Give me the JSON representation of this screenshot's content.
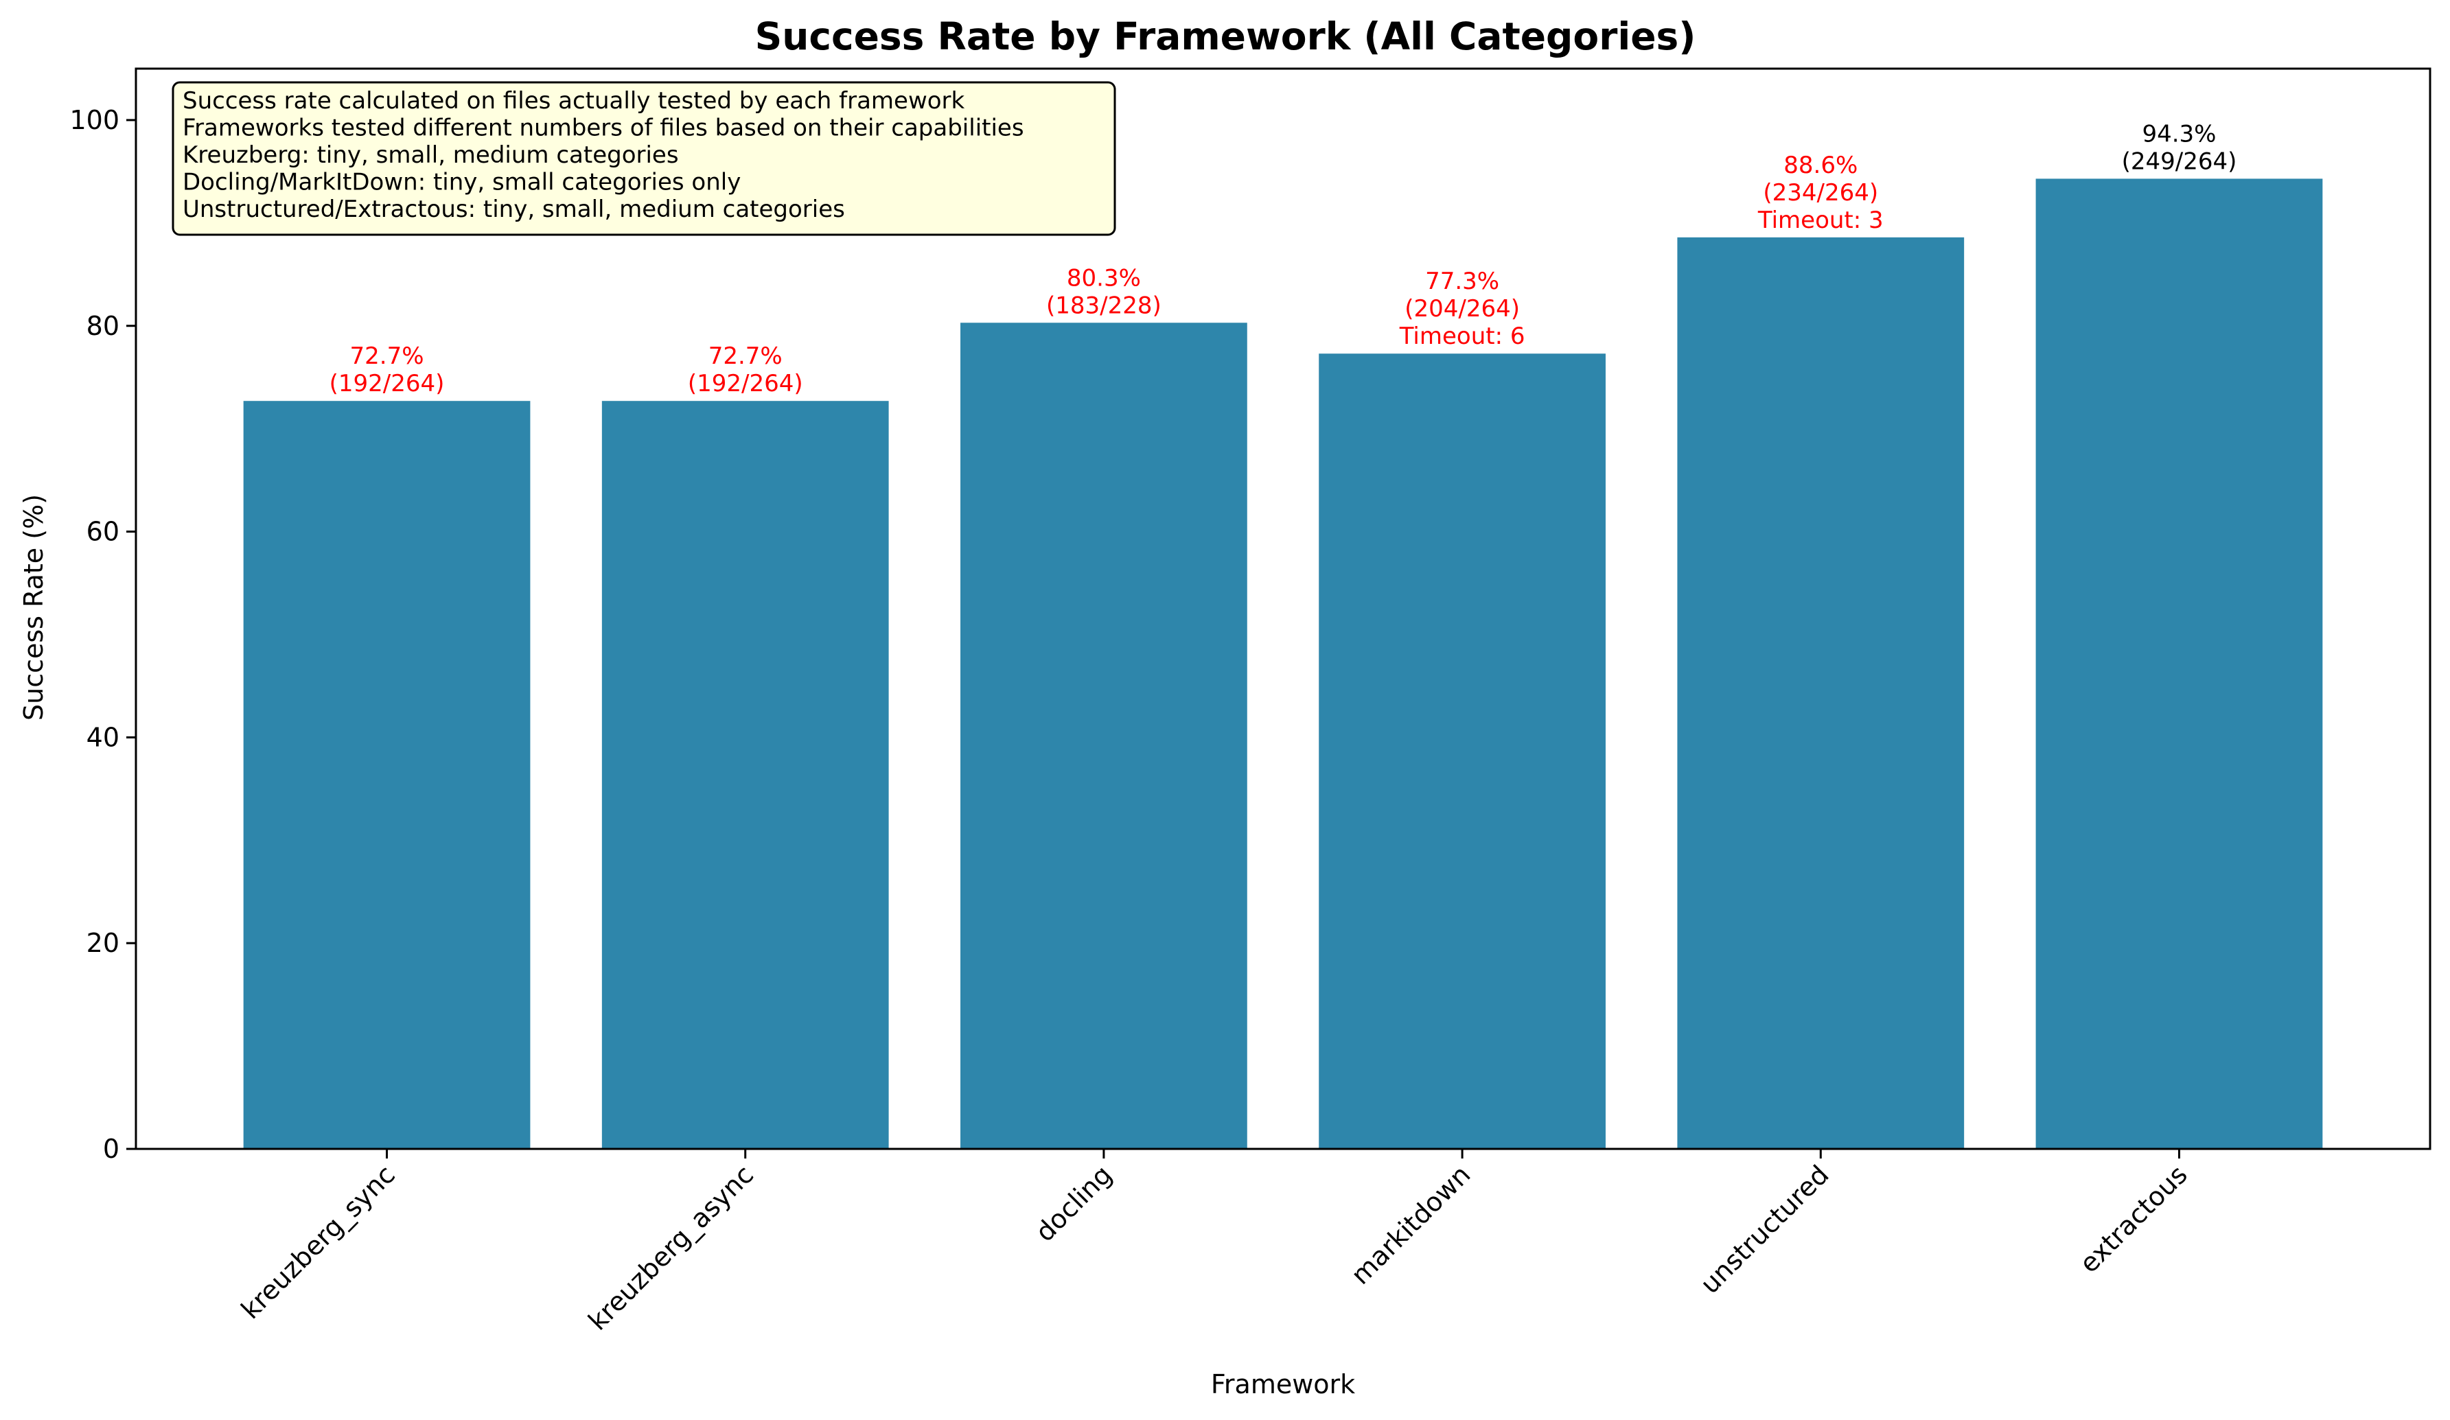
{
  "chart_data": {
    "type": "bar",
    "title": "Success Rate by Framework (All Categories)",
    "xlabel": "Framework",
    "ylabel": "Success Rate (%)",
    "ylim": [
      0,
      105
    ],
    "yticks": [
      "0",
      "20",
      "40",
      "60",
      "80",
      "100"
    ],
    "grid": false,
    "bar_color": "#2e86ab",
    "categories": [
      "kreuzberg_sync",
      "kreuzberg_async",
      "docling",
      "markitdown",
      "unstructured",
      "extractous"
    ],
    "values": [
      72.7,
      72.7,
      80.3,
      77.3,
      88.6,
      94.3
    ],
    "annotations": [
      {
        "lines": [
          "72.7%",
          "(192/264)"
        ],
        "color": "#ff0000"
      },
      {
        "lines": [
          "72.7%",
          "(192/264)"
        ],
        "color": "#ff0000"
      },
      {
        "lines": [
          "80.3%",
          "(183/228)"
        ],
        "color": "#ff0000"
      },
      {
        "lines": [
          "77.3%",
          "(204/264)",
          "Timeout: 6"
        ],
        "color": "#ff0000"
      },
      {
        "lines": [
          "88.6%",
          "(234/264)",
          "Timeout: 3"
        ],
        "color": "#ff0000"
      },
      {
        "lines": [
          "94.3%",
          "(249/264)"
        ],
        "color": "#000000"
      }
    ],
    "note": {
      "lines": [
        "Success rate calculated on files actually tested by each framework",
        "Frameworks tested different numbers of files based on their capabilities",
        "Kreuzberg: tiny, small, medium categories",
        "Docling/MarkItDown: tiny, small categories only",
        "Unstructured/Extractous: tiny, small, medium categories"
      ],
      "background": "#ffffe0"
    }
  }
}
